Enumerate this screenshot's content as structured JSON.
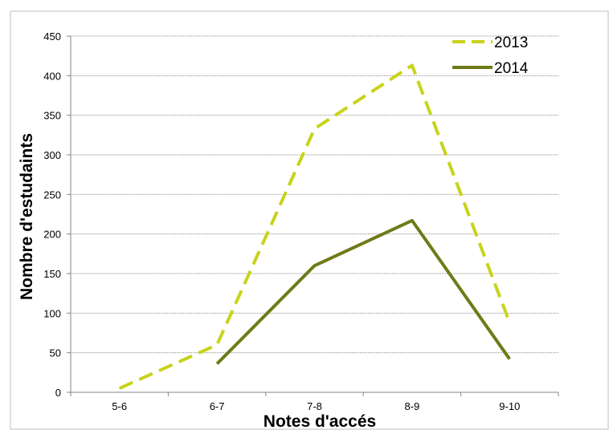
{
  "chart_data": {
    "type": "line",
    "categories": [
      "5-6",
      "6-7",
      "7-8",
      "8-9",
      "9-10"
    ],
    "series": [
      {
        "name": "2013",
        "values": [
          5,
          60,
          333,
          413,
          88
        ],
        "color": "#c8d31a",
        "style": "dashed"
      },
      {
        "name": "2014",
        "values": [
          null,
          36,
          160,
          217,
          42
        ],
        "color": "#6f7a18",
        "style": "solid"
      }
    ],
    "xlabel": "Notes d'accés",
    "ylabel": "Nombre d'estudaints",
    "ylim": [
      0,
      450
    ],
    "yticks": [
      0,
      50,
      100,
      150,
      200,
      250,
      300,
      350,
      400,
      450
    ],
    "grid": true,
    "legend_position": "top-right"
  }
}
